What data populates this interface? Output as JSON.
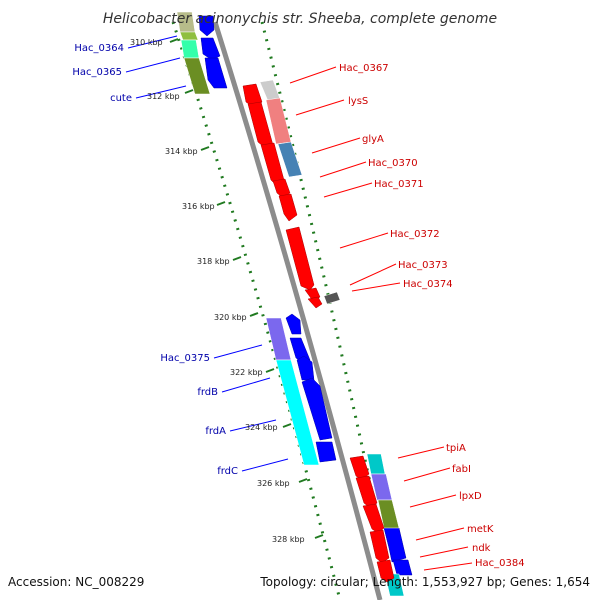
{
  "title": "Helicobacter acinonychis str. Sheeba, complete genome",
  "accession": "Accession: NC_008229",
  "topology": "Topology: circular; Length: 1,553,927 bp; Genes: 1,654",
  "colors": {
    "forward": "#ff0000",
    "reverse": "#0000ff",
    "forward_label": "#cc0000",
    "reverse_label": "#0000aa",
    "backbone": "#8c8c8c",
    "tick": "#207a20"
  },
  "scale_ticks": [
    "310 kbp",
    "312 kbp",
    "314 kbp",
    "316 kbp",
    "318 kbp",
    "320 kbp",
    "322 kbp",
    "324 kbp",
    "326 kbp",
    "328 kbp"
  ],
  "genes": {
    "forward": [
      "Hac_0367",
      "lysS",
      "glyA",
      "Hac_0370",
      "Hac_0371",
      "Hac_0372",
      "Hac_0373",
      "Hac_0374",
      "tpiA",
      "fabI",
      "lpxD",
      "metK",
      "ndk",
      "Hac_0384"
    ],
    "reverse": [
      "Hac_0364",
      "Hac_0365",
      "cute",
      "Hac_0375",
      "frdB",
      "frdA",
      "frdC"
    ]
  }
}
